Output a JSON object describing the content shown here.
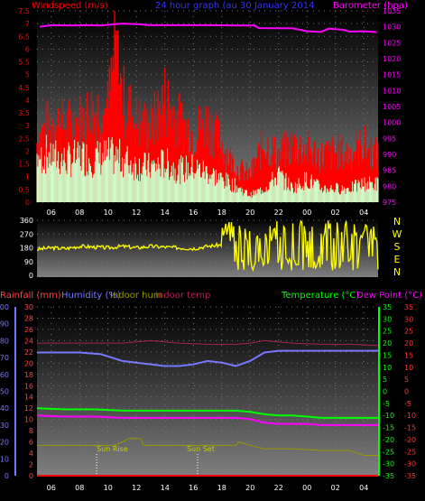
{
  "colors": {
    "background": "#000000",
    "wind": "#ff0000",
    "gust_fill": "#ff0000",
    "avg_fill": "#ccffcc",
    "baro": "#ff00ff",
    "title_blue": "#3333ff",
    "dir": "#ffff00",
    "dir_labels": "#ffff00",
    "rain_axis": "#ff4444",
    "humidity": "#7777ff",
    "indoor_hum": "#999900",
    "indoor_temp": "#aa2255",
    "temperature": "#00ff00",
    "dewpoint": "#ff00ff",
    "temp_axis_right": "#ff3333",
    "grid": "#777777",
    "xaxis_labels": "#ffffff",
    "marker": "#cccc00"
  },
  "header": {
    "wind_label": "Windspeed (m/s)",
    "title": "24 hour graph (au   30 January 2014",
    "baro_label": "Barometer (hpa)"
  },
  "compass": [
    "N",
    "W",
    "S",
    "E",
    "N"
  ],
  "lower_labels": {
    "rain": "Rainfall (mm)",
    "humidity": "Humidity (%)",
    "indoor_hum": "Indoor hum",
    "indoor_temp": "Indoor temp",
    "temperature": "Temperature (°C)",
    "dewpoint": "Dew Point (°C)"
  },
  "markers": {
    "sunrise": "Sun Rise",
    "sunset": "Sun Set"
  },
  "chart_data": [
    {
      "type": "area",
      "title": "24 hour graph (au   30 January 2014",
      "x_tick_labels": [
        "06",
        "08",
        "10",
        "12",
        "14",
        "16",
        "18",
        "20",
        "22",
        "00",
        "02",
        "04"
      ],
      "y_left": {
        "label": "Windspeed (m/s)",
        "range": [
          0,
          7.5
        ],
        "ticks": [
          "0",
          "0.5",
          "1",
          "1.5",
          "2",
          "2.5",
          "3",
          "3.5",
          "4",
          "4.5",
          "5",
          "5.5",
          "6",
          "6.5",
          "7",
          "7.5"
        ]
      },
      "y_right": {
        "label": "Barometer (hpa)",
        "range": [
          975,
          1035
        ],
        "ticks": [
          "975",
          "980",
          "985",
          "990",
          "995",
          "1000",
          "1005",
          "1010",
          "1015",
          "1020",
          "1025",
          "1030",
          "1035"
        ]
      },
      "series": [
        {
          "name": "Barometer",
          "axis": "right",
          "points": [
            [
              5.2,
              1030
            ],
            [
              6.0,
              1030.5
            ],
            [
              7.5,
              1030.4
            ],
            [
              8.5,
              1030.5
            ],
            [
              9.5,
              1030.4
            ],
            [
              11.0,
              1031
            ],
            [
              12.2,
              1030.8
            ],
            [
              13.0,
              1030.5
            ],
            [
              15.0,
              1030.5
            ],
            [
              17.0,
              1030.5
            ],
            [
              19.0,
              1030.4
            ],
            [
              20.3,
              1030.4
            ],
            [
              20.6,
              1029.6
            ],
            [
              23.0,
              1029.5
            ],
            [
              24.0,
              1028.6
            ],
            [
              25.0,
              1028.4
            ],
            [
              25.5,
              1029.4
            ],
            [
              26.5,
              1029.1
            ],
            [
              27.0,
              1028.5
            ],
            [
              28.0,
              1028.6
            ],
            [
              28.9,
              1028.3
            ]
          ]
        },
        {
          "name": "Gust",
          "axis": "left",
          "points": [
            [
              5.0,
              2.6
            ],
            [
              6.0,
              3.5
            ],
            [
              7.0,
              3.3
            ],
            [
              8.0,
              3.5
            ],
            [
              9.0,
              4.0
            ],
            [
              10.0,
              4.0
            ],
            [
              10.5,
              6.6
            ],
            [
              11.0,
              4.5
            ],
            [
              12.0,
              3.5
            ],
            [
              13.0,
              3.2
            ],
            [
              14.0,
              4.5
            ],
            [
              15.0,
              3.5
            ],
            [
              16.0,
              3.0
            ],
            [
              17.0,
              3.5
            ],
            [
              18.0,
              2.5
            ],
            [
              19.0,
              1.5
            ],
            [
              20.0,
              1.2
            ],
            [
              21.0,
              2.6
            ],
            [
              22.0,
              2.0
            ],
            [
              23.0,
              2.5
            ],
            [
              24.0,
              2.3
            ],
            [
              25.0,
              2.0
            ],
            [
              26.0,
              2.2
            ],
            [
              27.0,
              2.1
            ],
            [
              28.0,
              2.5
            ],
            [
              29.0,
              2.0
            ]
          ]
        },
        {
          "name": "Average",
          "axis": "left",
          "points": [
            [
              5.0,
              2.0
            ],
            [
              6.0,
              2.1
            ],
            [
              7.0,
              1.8
            ],
            [
              8.0,
              2.0
            ],
            [
              9.0,
              1.9
            ],
            [
              10.0,
              2.0
            ],
            [
              11.0,
              1.9
            ],
            [
              12.0,
              1.6
            ],
            [
              13.0,
              1.5
            ],
            [
              14.0,
              1.7
            ],
            [
              15.0,
              1.4
            ],
            [
              16.0,
              1.5
            ],
            [
              17.0,
              1.3
            ],
            [
              18.0,
              1.0
            ],
            [
              19.0,
              0.7
            ],
            [
              20.0,
              0.3
            ],
            [
              21.0,
              0.6
            ],
            [
              22.0,
              1.2
            ],
            [
              23.0,
              0.6
            ],
            [
              24.0,
              1.0
            ],
            [
              25.0,
              0.6
            ],
            [
              26.0,
              0.6
            ],
            [
              27.0,
              0.6
            ],
            [
              28.0,
              0.8
            ],
            [
              29.0,
              0.8
            ]
          ]
        }
      ]
    },
    {
      "type": "line",
      "y_left": {
        "range": [
          0,
          360
        ],
        "ticks": [
          "0",
          "90",
          "180",
          "270",
          "360"
        ]
      },
      "y_right_labels": [
        "N",
        "W",
        "S",
        "E",
        "N"
      ],
      "series": [
        {
          "name": "Wind direction",
          "points": [
            [
              5.0,
              170
            ],
            [
              6.0,
              180
            ],
            [
              7.0,
              175
            ],
            [
              8.0,
              190
            ],
            [
              9.0,
              185
            ],
            [
              10.0,
              180
            ],
            [
              11.0,
              190
            ],
            [
              12.0,
              180
            ],
            [
              13.0,
              190
            ],
            [
              14.0,
              185
            ],
            [
              15.0,
              180
            ],
            [
              16.0,
              175
            ],
            [
              17.0,
              190
            ],
            [
              18.0,
              200
            ],
            [
              18.5,
              130
            ],
            [
              19.0,
              210
            ],
            [
              19.5,
              80
            ],
            [
              20.0,
              240
            ],
            [
              20.5,
              50
            ],
            [
              21.0,
              300
            ],
            [
              21.5,
              60
            ],
            [
              22.0,
              340
            ],
            [
              22.5,
              40
            ],
            [
              23.0,
              320
            ],
            [
              23.5,
              120
            ],
            [
              24.0,
              300
            ],
            [
              24.5,
              30
            ],
            [
              25.0,
              350
            ],
            [
              25.5,
              60
            ],
            [
              26.0,
              300
            ],
            [
              26.5,
              40
            ],
            [
              27.0,
              330
            ],
            [
              27.5,
              20
            ],
            [
              28.0,
              300
            ],
            [
              28.5,
              20
            ],
            [
              29.0,
              40
            ]
          ]
        }
      ]
    },
    {
      "type": "line",
      "x_tick_labels": [
        "06",
        "08",
        "10",
        "12",
        "14",
        "16",
        "18",
        "20",
        "22",
        "00",
        "02",
        "04"
      ],
      "y_axes": [
        {
          "label": "Humidity (%)",
          "range": [
            0,
            100
          ],
          "ticks": [
            "0",
            "10",
            "20",
            "30",
            "40",
            "50",
            "60",
            "70",
            "80",
            "90",
            "100"
          ]
        },
        {
          "label": "Rainfall (mm)",
          "range": [
            0,
            30
          ],
          "ticks": [
            "0",
            "2",
            "4",
            "6",
            "8",
            "10",
            "12",
            "14",
            "16",
            "18",
            "20",
            "22",
            "24",
            "26",
            "28",
            "30"
          ]
        },
        {
          "label": "Temperature (°C)",
          "range": [
            -35,
            35
          ],
          "ticks": [
            "-35",
            "-30",
            "-25",
            "-20",
            "-15",
            "-10",
            "-5",
            "0",
            "5",
            "10",
            "15",
            "20",
            "25",
            "30",
            "35"
          ]
        },
        {
          "label": "Dew Point (°C)",
          "range": [
            -35,
            35
          ],
          "ticks": [
            "-35",
            "-30",
            "-25",
            "-20",
            "-15",
            "-10",
            "-5",
            "0",
            "5",
            "10",
            "15",
            "20",
            "25",
            "30",
            "35"
          ]
        }
      ],
      "series": [
        {
          "name": "Humidity (%)",
          "axis": "humidity",
          "points": [
            [
              5.0,
              73
            ],
            [
              6.0,
              73
            ],
            [
              8.0,
              73
            ],
            [
              9.5,
              72
            ],
            [
              11.0,
              68
            ],
            [
              12.0,
              67
            ],
            [
              13.0,
              66
            ],
            [
              14.0,
              65
            ],
            [
              15.0,
              65
            ],
            [
              16.0,
              66
            ],
            [
              17.0,
              68
            ],
            [
              18.0,
              67
            ],
            [
              19.0,
              65
            ],
            [
              20.0,
              68
            ],
            [
              21.0,
              73
            ],
            [
              22.0,
              74
            ],
            [
              24.0,
              74
            ],
            [
              26.0,
              74
            ],
            [
              28.0,
              74
            ],
            [
              29.0,
              74
            ]
          ]
        },
        {
          "name": "Indoor temp",
          "axis": "temperature",
          "points": [
            [
              5.0,
              20
            ],
            [
              8.0,
              20
            ],
            [
              11.0,
              20
            ],
            [
              13.0,
              21
            ],
            [
              15.0,
              20
            ],
            [
              17.0,
              19.5
            ],
            [
              19.0,
              19.5
            ],
            [
              20.0,
              20
            ],
            [
              21.0,
              21
            ],
            [
              23.0,
              20
            ],
            [
              25.0,
              19.5
            ],
            [
              27.0,
              19.5
            ],
            [
              29.0,
              19
            ]
          ]
        },
        {
          "name": "Temperature (°C)",
          "axis": "temperature",
          "points": [
            [
              5.0,
              -7
            ],
            [
              7.0,
              -7.5
            ],
            [
              9.0,
              -7.5
            ],
            [
              11.0,
              -8
            ],
            [
              13.0,
              -8
            ],
            [
              15.0,
              -8
            ],
            [
              17.0,
              -8
            ],
            [
              19.0,
              -8
            ],
            [
              20.0,
              -8.5
            ],
            [
              21.0,
              -9.5
            ],
            [
              22.0,
              -10
            ],
            [
              23.0,
              -10
            ],
            [
              24.0,
              -10.5
            ],
            [
              25.0,
              -11
            ],
            [
              26.0,
              -11
            ],
            [
              27.0,
              -11
            ],
            [
              28.0,
              -11
            ],
            [
              29.0,
              -11
            ]
          ]
        },
        {
          "name": "Dew Point (°C)",
          "axis": "dewpoint",
          "points": [
            [
              5.0,
              -10
            ],
            [
              7.0,
              -10.5
            ],
            [
              9.0,
              -10.5
            ],
            [
              11.0,
              -11
            ],
            [
              13.0,
              -11
            ],
            [
              15.0,
              -11
            ],
            [
              17.0,
              -11
            ],
            [
              19.0,
              -11
            ],
            [
              20.0,
              -11.5
            ],
            [
              21.0,
              -13
            ],
            [
              22.0,
              -13.5
            ],
            [
              23.0,
              -13.5
            ],
            [
              24.0,
              -13.5
            ],
            [
              25.0,
              -14
            ],
            [
              26.0,
              -14
            ],
            [
              27.0,
              -14
            ],
            [
              28.0,
              -14
            ],
            [
              29.0,
              -14
            ]
          ]
        },
        {
          "name": "Indoor hum",
          "axis": "humidity",
          "points": [
            [
              5.0,
              18
            ],
            [
              8.0,
              18
            ],
            [
              9.0,
              18
            ],
            [
              10.5,
              18
            ],
            [
              11.5,
              22
            ],
            [
              12.3,
              22
            ],
            [
              12.5,
              18
            ],
            [
              15.0,
              18
            ],
            [
              16.0,
              18
            ],
            [
              17.0,
              18
            ],
            [
              19.0,
              18
            ],
            [
              19.2,
              20
            ],
            [
              20.0,
              18
            ],
            [
              21.0,
              16
            ],
            [
              23.0,
              16
            ],
            [
              25.0,
              15
            ],
            [
              27.0,
              15
            ],
            [
              28.0,
              12
            ],
            [
              29.0,
              12
            ]
          ]
        },
        {
          "name": "Rainfall (mm)",
          "axis": "rain",
          "points": [
            [
              5.0,
              0
            ],
            [
              29.0,
              0
            ]
          ]
        }
      ]
    }
  ]
}
